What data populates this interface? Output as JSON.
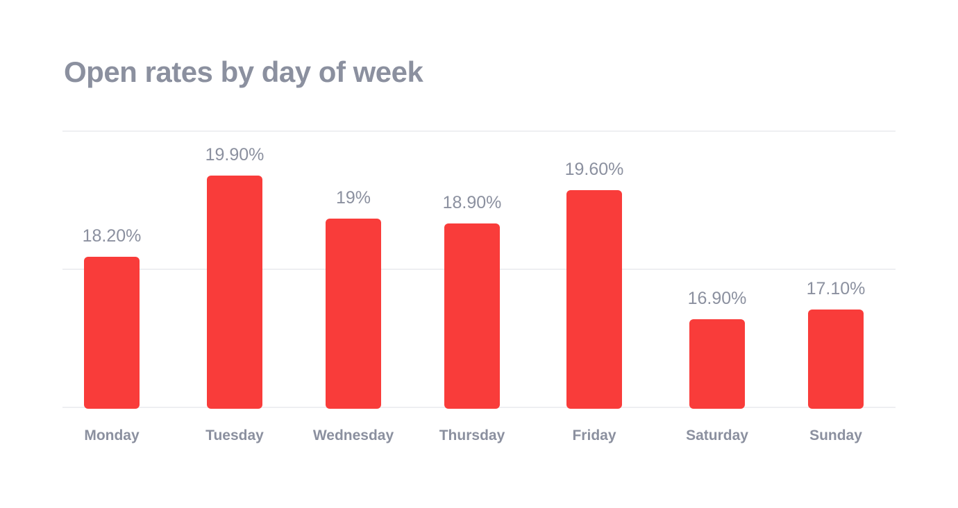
{
  "title": "Open rates by day of week",
  "colors": {
    "bar": "#f93c3a",
    "text": "#8b909f",
    "grid": "#eeeff2"
  },
  "chart_data": {
    "type": "bar",
    "title": "Open rates by day of week",
    "xlabel": "",
    "ylabel": "",
    "categories": [
      "Monday",
      "Tuesday",
      "Wednesday",
      "Thursday",
      "Friday",
      "Saturday",
      "Sunday"
    ],
    "values": [
      18.2,
      19.9,
      19.0,
      18.9,
      19.6,
      16.9,
      17.1
    ],
    "labels": [
      "18.20%",
      "19.90%",
      "19%",
      "18.90%",
      "19.60%",
      "16.90%",
      "17.10%"
    ],
    "grid": true,
    "legend": null
  }
}
